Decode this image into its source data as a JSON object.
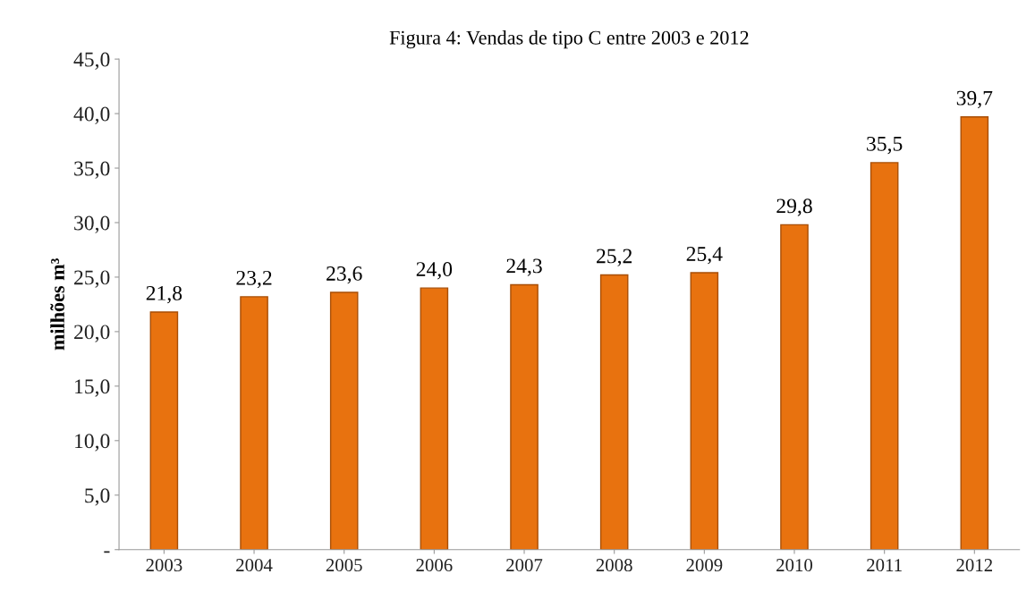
{
  "chart_data": {
    "type": "bar",
    "title": "Figura 4: Vendas de tipo C entre 2003 e 2012",
    "ylabel": "milhões m³",
    "categories": [
      "2003",
      "2004",
      "2005",
      "2006",
      "2007",
      "2008",
      "2009",
      "2010",
      "2011",
      "2012"
    ],
    "values": [
      21.8,
      23.2,
      23.6,
      24.0,
      24.3,
      25.2,
      25.4,
      29.8,
      35.5,
      39.7
    ],
    "value_labels": [
      "21,8",
      "23,2",
      "23,6",
      "24,0",
      "24,3",
      "25,2",
      "25,4",
      "29,8",
      "35,5",
      "39,7"
    ],
    "color": "#e8720f",
    "ylim": [
      0,
      45
    ],
    "yticks": [
      {
        "value": 0,
        "label": "-"
      },
      {
        "value": 5,
        "label": "5,0"
      },
      {
        "value": 10,
        "label": "10,0"
      },
      {
        "value": 15,
        "label": "15,0"
      },
      {
        "value": 20,
        "label": "20,0"
      },
      {
        "value": 25,
        "label": "25,0"
      },
      {
        "value": 30,
        "label": "30,0"
      },
      {
        "value": 35,
        "label": "35,0"
      },
      {
        "value": 40,
        "label": "40,0"
      },
      {
        "value": 45,
        "label": "45,0"
      }
    ],
    "grid": false,
    "legend": false
  }
}
